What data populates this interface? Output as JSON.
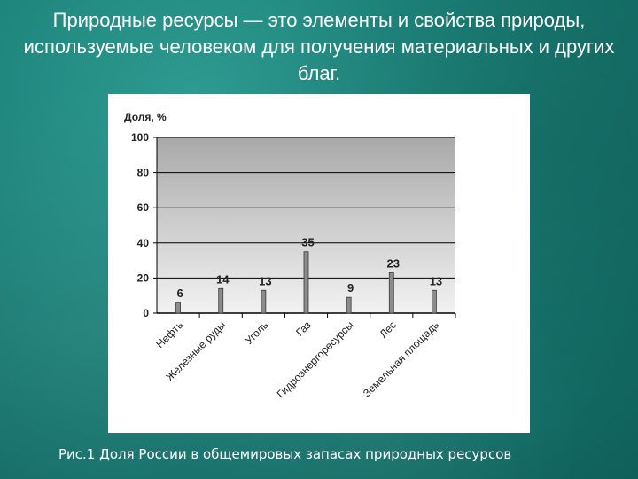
{
  "slide": {
    "title": "Природные ресурсы — это элементы и свойства природы, используемые человеком для получения материальных и других благ.",
    "caption": "Рис.1 Доля России в общемировых запасах природных ресурсов"
  },
  "chart_data": {
    "type": "bar",
    "title": "",
    "ylabel": "Доля, %",
    "xlabel": "",
    "categories": [
      "Нефть",
      "Железные руды",
      "Уголь",
      "Газ",
      "Гидроэнергоресурсы",
      "Лес",
      "Земельная площадь"
    ],
    "values": [
      6,
      14,
      13,
      35,
      9,
      23,
      13
    ],
    "value_labels": [
      "6",
      "14",
      "13",
      "35",
      "9",
      "23",
      "13"
    ],
    "ylim": [
      0,
      100
    ],
    "yticks": [
      0,
      20,
      40,
      60,
      80,
      100
    ],
    "ytick_labels": [
      "0",
      "20",
      "40",
      "60",
      "80",
      "100"
    ],
    "grid": true,
    "legend": "none",
    "colors": {
      "bar": "#8c8c8c",
      "grid": "#000000",
      "plot_top": "#a9a9a9",
      "plot_bottom": "#f2f2f2"
    }
  }
}
